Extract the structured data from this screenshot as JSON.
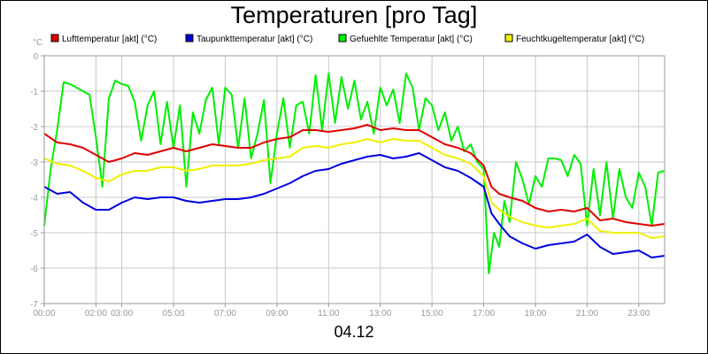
{
  "chart_data": {
    "type": "line",
    "title": "Temperaturen [pro Tag]",
    "xlabel": "04.12",
    "ylabel": "°C",
    "ylim": [
      -7,
      0
    ],
    "yticks": [
      0,
      -1,
      -2,
      -3,
      -4,
      -5,
      -6,
      -7
    ],
    "ytick_labels": [
      "0",
      "-1",
      "-2",
      "-3",
      "-4",
      "-5",
      "-6",
      "-7"
    ],
    "xlim": [
      0,
      24
    ],
    "xticks": [
      0,
      2,
      3,
      5,
      7,
      9,
      11,
      13,
      15,
      17,
      19,
      21,
      23
    ],
    "xtick_labels": [
      "00:00",
      "02:00",
      "03:00",
      "05:00",
      "07:00",
      "09:00",
      "11:00",
      "13:00",
      "15:00",
      "17:00",
      "19:00",
      "21:00",
      "23:00"
    ],
    "grid": true,
    "legend_position": "top",
    "series": [
      {
        "name": "Lufttemperatur [akt] (°C)",
        "color": "#e00000",
        "x": [
          0,
          0.5,
          1,
          1.5,
          2,
          2.5,
          3,
          3.5,
          4,
          4.5,
          5,
          5.5,
          6,
          6.5,
          7,
          7.5,
          8,
          8.5,
          9,
          9.5,
          10,
          10.5,
          11,
          11.5,
          12,
          12.5,
          13,
          13.5,
          14,
          14.5,
          15,
          15.5,
          16,
          16.5,
          17,
          17.3,
          17.6,
          18,
          18.5,
          19,
          19.5,
          20,
          20.5,
          21,
          21.5,
          22,
          22.5,
          23,
          23.5,
          24
        ],
        "y": [
          -2.2,
          -2.45,
          -2.5,
          -2.6,
          -2.8,
          -3.0,
          -2.9,
          -2.75,
          -2.8,
          -2.7,
          -2.6,
          -2.7,
          -2.6,
          -2.5,
          -2.55,
          -2.6,
          -2.6,
          -2.45,
          -2.35,
          -2.3,
          -2.1,
          -2.1,
          -2.15,
          -2.1,
          -2.05,
          -1.95,
          -2.1,
          -2.05,
          -2.1,
          -2.1,
          -2.3,
          -2.5,
          -2.6,
          -2.75,
          -3.1,
          -3.7,
          -3.9,
          -4.0,
          -4.1,
          -4.3,
          -4.4,
          -4.35,
          -4.4,
          -4.3,
          -4.65,
          -4.6,
          -4.7,
          -4.75,
          -4.8,
          -4.75
        ]
      },
      {
        "name": "Taupunkttemperatur [akt] (°C)",
        "color": "#0000e0",
        "x": [
          0,
          0.5,
          1,
          1.5,
          2,
          2.5,
          3,
          3.5,
          4,
          4.5,
          5,
          5.5,
          6,
          6.5,
          7,
          7.5,
          8,
          8.5,
          9,
          9.5,
          10,
          10.5,
          11,
          11.5,
          12,
          12.5,
          13,
          13.5,
          14,
          14.5,
          15,
          15.5,
          16,
          16.5,
          17,
          17.3,
          17.6,
          18,
          18.5,
          19,
          19.5,
          20,
          20.5,
          21,
          21.5,
          22,
          22.5,
          23,
          23.5,
          24
        ],
        "y": [
          -3.7,
          -3.9,
          -3.85,
          -4.15,
          -4.35,
          -4.35,
          -4.15,
          -4.0,
          -4.05,
          -4.0,
          -4.0,
          -4.1,
          -4.15,
          -4.1,
          -4.05,
          -4.05,
          -4.0,
          -3.9,
          -3.75,
          -3.6,
          -3.4,
          -3.25,
          -3.2,
          -3.05,
          -2.95,
          -2.85,
          -2.8,
          -2.9,
          -2.85,
          -2.75,
          -2.95,
          -3.15,
          -3.25,
          -3.45,
          -3.7,
          -4.45,
          -4.75,
          -5.1,
          -5.3,
          -5.45,
          -5.35,
          -5.3,
          -5.25,
          -5.05,
          -5.4,
          -5.6,
          -5.55,
          -5.5,
          -5.7,
          -5.65
        ]
      },
      {
        "name": "Gefuehlte Temperatur [akt] (°C)",
        "color": "#00ee00",
        "x": [
          0,
          0.25,
          0.5,
          0.75,
          1,
          1.25,
          1.5,
          1.75,
          2,
          2.25,
          2.5,
          2.75,
          3,
          3.25,
          3.5,
          3.75,
          4,
          4.25,
          4.5,
          4.75,
          5,
          5.25,
          5.5,
          5.75,
          6,
          6.25,
          6.5,
          6.75,
          7,
          7.25,
          7.5,
          7.75,
          8,
          8.25,
          8.5,
          8.75,
          9,
          9.25,
          9.5,
          9.75,
          10,
          10.25,
          10.5,
          10.75,
          11,
          11.25,
          11.5,
          11.75,
          12,
          12.25,
          12.5,
          12.75,
          13,
          13.25,
          13.5,
          13.75,
          14,
          14.25,
          14.5,
          14.75,
          15,
          15.25,
          15.5,
          15.75,
          16,
          16.25,
          16.5,
          16.75,
          17,
          17.2,
          17.4,
          17.6,
          17.8,
          18,
          18.25,
          18.5,
          18.75,
          19,
          19.25,
          19.5,
          19.75,
          20,
          20.25,
          20.5,
          20.75,
          21,
          21.25,
          21.5,
          21.75,
          22,
          22.25,
          22.5,
          22.75,
          23,
          23.25,
          23.5,
          23.75,
          24
        ],
        "y": [
          -4.8,
          -3.2,
          -2.1,
          -0.75,
          -0.8,
          -0.9,
          -1.0,
          -1.1,
          -2.3,
          -3.7,
          -1.2,
          -0.7,
          -0.8,
          -0.85,
          -1.3,
          -2.4,
          -1.4,
          -1.0,
          -2.5,
          -1.3,
          -2.6,
          -1.4,
          -3.7,
          -1.6,
          -2.2,
          -1.25,
          -0.9,
          -2.5,
          -0.9,
          -1.1,
          -2.6,
          -1.2,
          -2.9,
          -2.2,
          -1.25,
          -3.6,
          -2.2,
          -1.2,
          -2.6,
          -1.4,
          -1.3,
          -2.2,
          -0.55,
          -2.1,
          -0.5,
          -1.9,
          -0.6,
          -1.5,
          -0.7,
          -1.8,
          -1.3,
          -2.2,
          -0.9,
          -1.4,
          -0.95,
          -1.9,
          -0.5,
          -0.9,
          -2.1,
          -1.2,
          -1.4,
          -2.1,
          -1.6,
          -2.4,
          -2.0,
          -2.7,
          -2.5,
          -3.0,
          -3.2,
          -6.15,
          -5.0,
          -5.4,
          -4.1,
          -4.7,
          -3.0,
          -3.5,
          -4.2,
          -3.4,
          -3.7,
          -2.9,
          -2.9,
          -2.95,
          -3.4,
          -2.8,
          -3.05,
          -4.8,
          -3.2,
          -4.5,
          -3.0,
          -4.6,
          -3.2,
          -4.0,
          -4.3,
          -3.3,
          -3.7,
          -4.8,
          -3.3,
          -3.25
        ]
      },
      {
        "name": "Feuchtkugeltemperatur [akt] (°C)",
        "color": "#f0f000",
        "x": [
          0,
          0.5,
          1,
          1.5,
          2,
          2.5,
          3,
          3.5,
          4,
          4.5,
          5,
          5.5,
          6,
          6.5,
          7,
          7.5,
          8,
          8.5,
          9,
          9.5,
          10,
          10.5,
          11,
          11.5,
          12,
          12.5,
          13,
          13.5,
          14,
          14.5,
          15,
          15.5,
          16,
          16.5,
          17,
          17.3,
          17.6,
          18,
          18.5,
          19,
          19.5,
          20,
          20.5,
          21,
          21.5,
          22,
          22.5,
          23,
          23.5,
          24
        ],
        "y": [
          -2.9,
          -3.05,
          -3.1,
          -3.25,
          -3.45,
          -3.55,
          -3.35,
          -3.25,
          -3.25,
          -3.15,
          -3.15,
          -3.25,
          -3.2,
          -3.1,
          -3.1,
          -3.1,
          -3.05,
          -2.95,
          -2.9,
          -2.85,
          -2.6,
          -2.55,
          -2.6,
          -2.5,
          -2.45,
          -2.35,
          -2.45,
          -2.35,
          -2.4,
          -2.4,
          -2.6,
          -2.8,
          -2.9,
          -3.05,
          -3.4,
          -4.15,
          -4.35,
          -4.55,
          -4.7,
          -4.8,
          -4.85,
          -4.8,
          -4.75,
          -4.6,
          -4.95,
          -5.0,
          -5.0,
          -5.0,
          -5.15,
          -5.1
        ]
      }
    ]
  }
}
